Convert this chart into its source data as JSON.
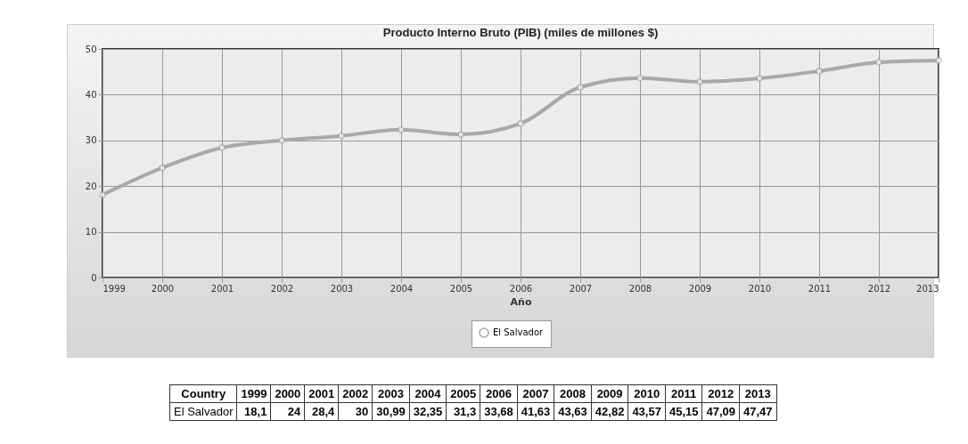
{
  "chart_data": [
    {
      "type": "line",
      "title": "Producto Interno Bruto (PIB) (miles de millones $)",
      "xlabel": "Año",
      "x": [
        1999,
        2000,
        2001,
        2002,
        2003,
        2004,
        2005,
        2006,
        2007,
        2008,
        2009,
        2010,
        2011,
        2012,
        2013
      ],
      "series": [
        {
          "name": "El Salvador",
          "color": "#a8a8a8",
          "values": [
            18.1,
            24,
            28.4,
            30,
            30.99,
            32.35,
            31.3,
            33.68,
            41.63,
            43.63,
            42.82,
            43.57,
            45.15,
            47.09,
            47.47
          ]
        }
      ],
      "xlim": [
        1999,
        2013
      ],
      "xticks": [
        1999,
        2000,
        2001,
        2002,
        2003,
        2004,
        2005,
        2006,
        2007,
        2008,
        2009,
        2010,
        2011,
        2012,
        2013
      ],
      "ylim": [
        0,
        50
      ],
      "yticks": [
        0,
        10,
        20,
        30,
        40,
        50
      ],
      "grid": true,
      "legend": "bottom",
      "marker": "circle",
      "line_style": "solid"
    },
    {
      "type": "heatmap",
      "annotations": [
        "Country"
      ],
      "categories": [
        "1999",
        "2000",
        "2001",
        "2002",
        "2003",
        "2004",
        "2005",
        "2006",
        "2007",
        "2008",
        "2009",
        "2010",
        "2011",
        "2012",
        "2013"
      ],
      "y_categories": [
        "El Salvador"
      ],
      "cells": [
        [
          18.1,
          24,
          28.4,
          30,
          30.99,
          32.35,
          31.3,
          33.68,
          41.63,
          43.63,
          42.82,
          43.57,
          45.15,
          47.09,
          47.47
        ]
      ],
      "cell_labels": [
        [
          "18,1",
          "24",
          "28,4",
          "30",
          "30,99",
          "32,35",
          "31,3",
          "33,68",
          "41,63",
          "43,63",
          "42,82",
          "43,57",
          "45,15",
          "47,09",
          "47,47"
        ]
      ]
    }
  ]
}
